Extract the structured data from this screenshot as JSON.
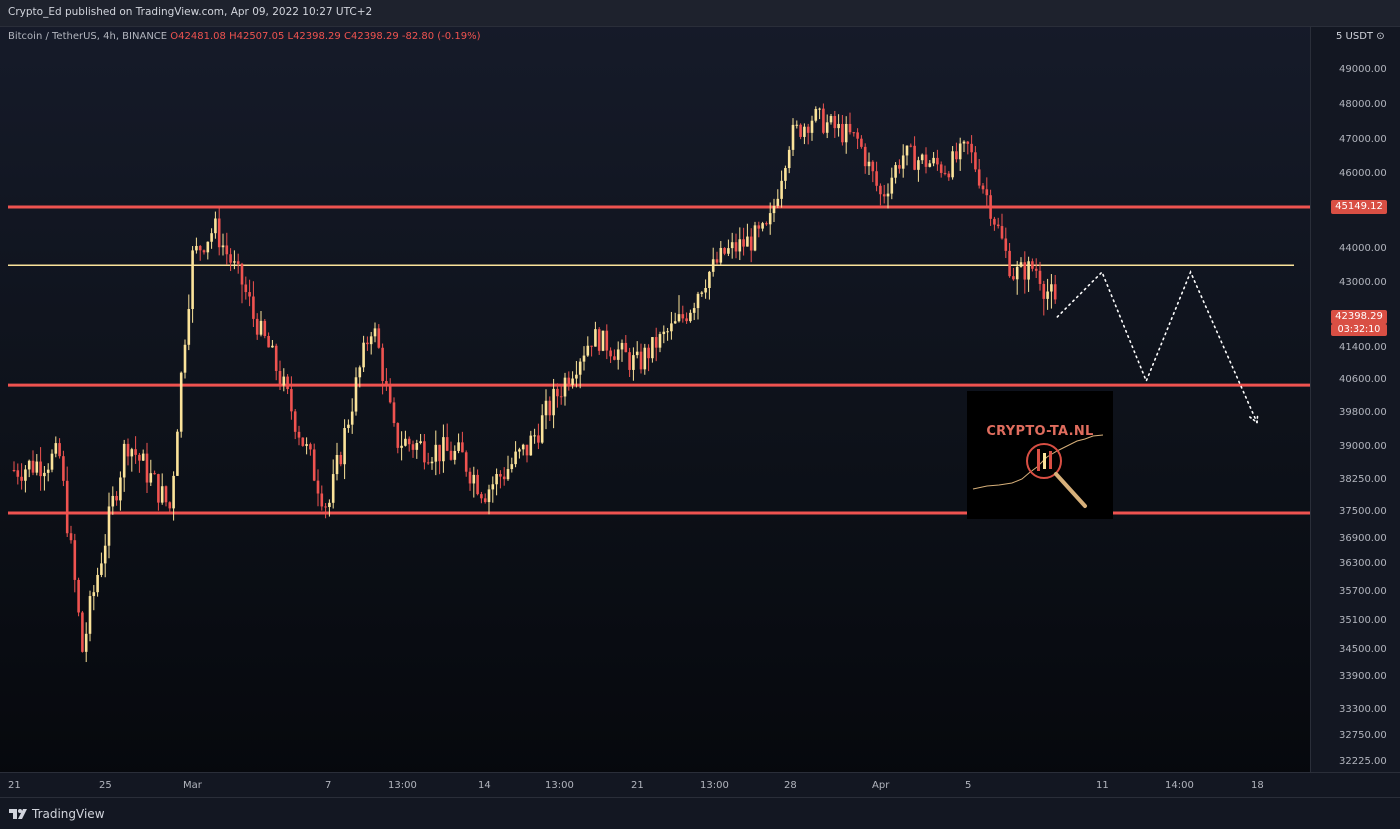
{
  "header": {
    "published_by": "Crypto_Ed published on TradingView.com, Apr 09, 2022 10:27 UTC+2"
  },
  "symbol_info": {
    "name": "Bitcoin / TetherUS, 4h, BINANCE",
    "open": "O42481.08",
    "high": "H42507.05",
    "low": "L42398.29",
    "close": "C42398.29",
    "change": "-82.80 (-0.19%)"
  },
  "price_axis": {
    "currency": "5 USDT ⊙",
    "ticks": [
      "49000.00",
      "48000.00",
      "47000.00",
      "46000.00",
      "44000.00",
      "43000.00",
      "41400.00",
      "40600.00",
      "39800.00",
      "39000.00",
      "38250.00",
      "37500.00",
      "36900.00",
      "36300.00",
      "35700.00",
      "35100.00",
      "34500.00",
      "33900.00",
      "33300.00",
      "32750.00",
      "32225.00"
    ],
    "level_tag": "45149.12",
    "price_tag": "42398.29",
    "countdown_tag": "03:32:10"
  },
  "time_axis": {
    "ticks": [
      "21",
      "25",
      "Mar",
      "7",
      "13:00",
      "14",
      "13:00",
      "21",
      "13:00",
      "28",
      "Apr",
      "5",
      "11",
      "14:00",
      "18"
    ]
  },
  "watermark": {
    "text": "CRYPTO-TA.NL"
  },
  "footer": {
    "brand": "TradingView"
  },
  "colors": {
    "bull": "#fbe39a",
    "bear": "#ef5350",
    "level": "#ef5350",
    "yellow_line": "#fbe39a",
    "projection": "#ffffff"
  },
  "chart_data": {
    "type": "candlestick",
    "symbol": "Bitcoin / TetherUS",
    "timeframe": "4h",
    "exchange": "BINANCE",
    "key_price_points": [
      {
        "date": "Feb 21",
        "price": 38500
      },
      {
        "date": "Feb 23",
        "price": 38800
      },
      {
        "date": "Feb 24",
        "price": 34500
      },
      {
        "date": "Feb 26",
        "price": 39200
      },
      {
        "date": "Feb 28",
        "price": 37600
      },
      {
        "date": "Mar 1",
        "price": 43800
      },
      {
        "date": "Mar 2",
        "price": 44600
      },
      {
        "date": "Mar 4",
        "price": 42000
      },
      {
        "date": "Mar 6",
        "price": 39000
      },
      {
        "date": "Mar 7",
        "price": 37600
      },
      {
        "date": "Mar 9",
        "price": 42200
      },
      {
        "date": "Mar 10",
        "price": 39200
      },
      {
        "date": "Mar 13",
        "price": 38800
      },
      {
        "date": "Mar 14",
        "price": 38000
      },
      {
        "date": "Mar 16",
        "price": 39000
      },
      {
        "date": "Mar 18",
        "price": 40900
      },
      {
        "date": "Mar 19",
        "price": 41800
      },
      {
        "date": "Mar 21",
        "price": 41000
      },
      {
        "date": "Mar 23",
        "price": 42300
      },
      {
        "date": "Mar 25",
        "price": 43900
      },
      {
        "date": "Mar 27",
        "price": 44500
      },
      {
        "date": "Mar 28",
        "price": 47100
      },
      {
        "date": "Mar 29",
        "price": 47700
      },
      {
        "date": "Mar 31",
        "price": 47000
      },
      {
        "date": "Apr 1",
        "price": 45400
      },
      {
        "date": "Apr 2",
        "price": 46600
      },
      {
        "date": "Apr 4",
        "price": 46200
      },
      {
        "date": "Apr 5",
        "price": 46800
      },
      {
        "date": "Apr 6",
        "price": 45200
      },
      {
        "date": "Apr 7",
        "price": 43300
      },
      {
        "date": "Apr 8",
        "price": 43500
      },
      {
        "date": "Apr 9",
        "price": 42398.29
      }
    ],
    "horizontal_levels": [
      45149.12,
      43550,
      40500,
      37500
    ],
    "projection_path": [
      {
        "date": "Apr 9",
        "price": 42400
      },
      {
        "date": "Apr 11",
        "price": 43350
      },
      {
        "date": "Apr 13",
        "price": 40600
      },
      {
        "date": "Apr 15",
        "price": 43350
      },
      {
        "date": "Apr 18",
        "price": 39600
      }
    ],
    "ylim": [
      32000,
      49500
    ],
    "xlim": [
      "Feb 20",
      "Apr 20"
    ],
    "grid": false
  }
}
